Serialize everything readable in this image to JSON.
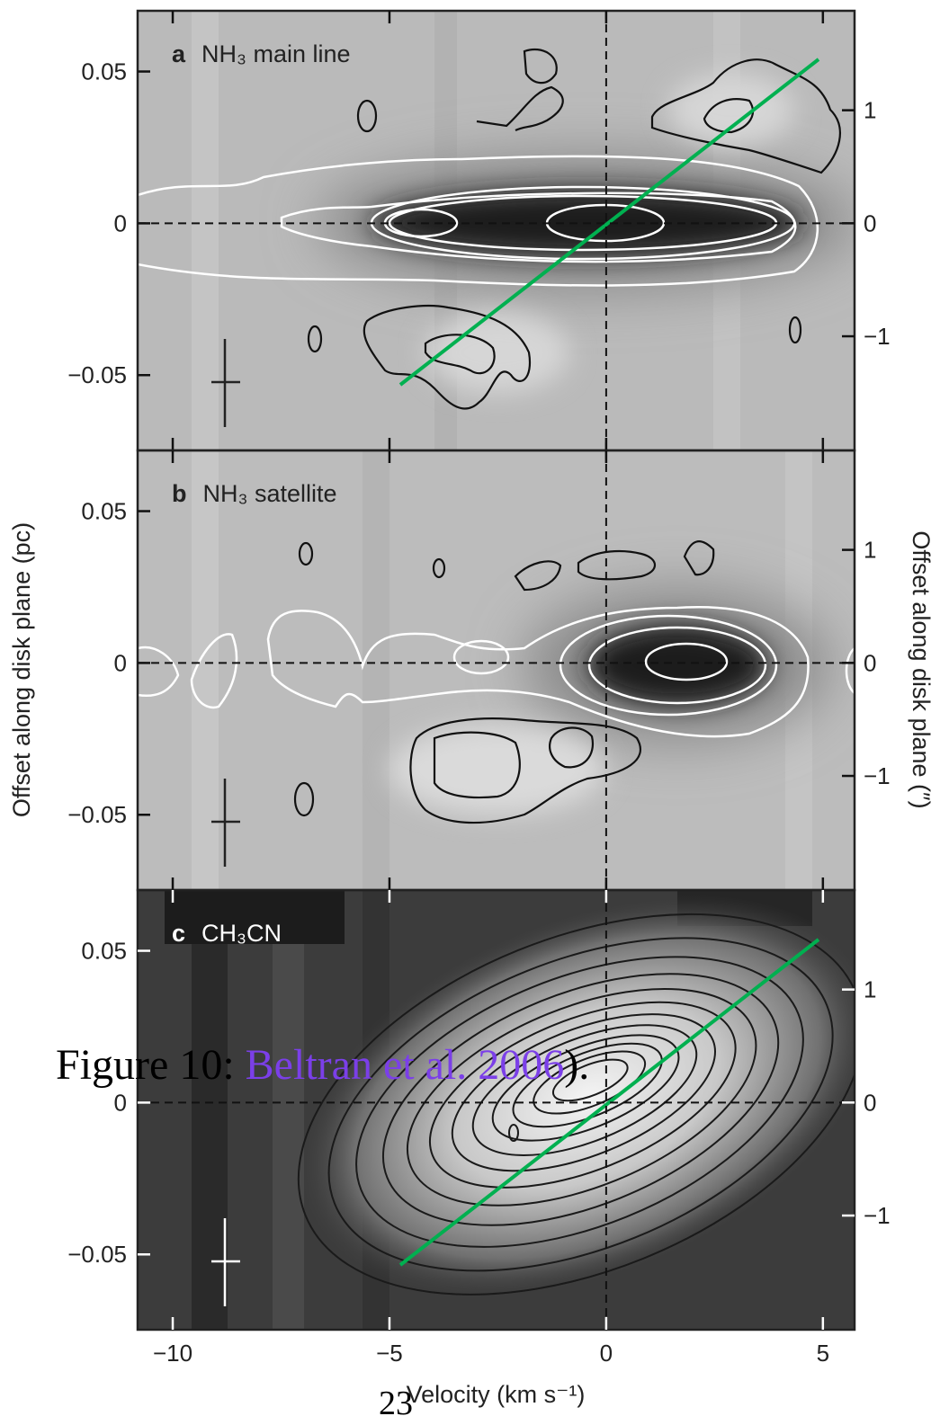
{
  "figure": {
    "panels": [
      {
        "letter": "a",
        "title": "NH₃ main line"
      },
      {
        "letter": "b",
        "title": "NH₃ satellite"
      },
      {
        "letter": "c",
        "title": "CH₃CN"
      }
    ],
    "x_label": "Velocity (km s⁻¹)",
    "y_label": "Offset along disk plane (pc)",
    "y2_label": "Offset along disk plane (″)",
    "xlim": [
      -10.81,
      5.73
    ],
    "xticks": [
      {
        "value": -10,
        "label": "−10"
      },
      {
        "value": -5,
        "label": "−5"
      },
      0,
      5
    ],
    "ylim": [
      -0.0748,
      0.07
    ],
    "yticks": [
      {
        "value": -0.05,
        "label": "−0.05"
      },
      0,
      0.05
    ],
    "y2lim": [
      -2.01,
      1.88
    ],
    "y2ticks": [
      {
        "value": -1,
        "label": "−1"
      },
      0,
      1
    ]
  },
  "caption": {
    "prefix": "Figure 10: ",
    "citation": "Beltran et al. 2006",
    "suffix": ")."
  },
  "page_number": "23"
}
